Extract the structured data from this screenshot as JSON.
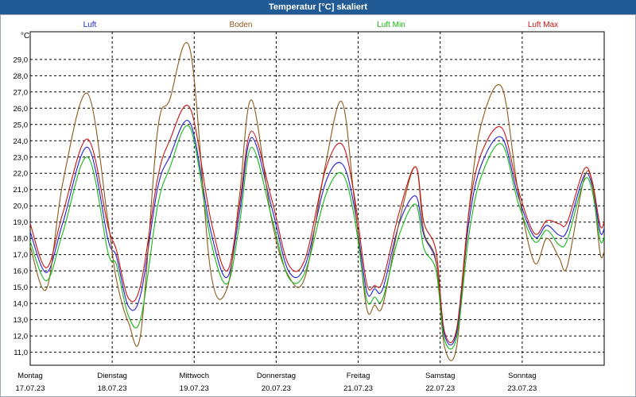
{
  "window": {
    "title": "Temperatur [°C] skaliert"
  },
  "chart_data": {
    "type": "line",
    "unit_label": "°C",
    "ylim": [
      10.2,
      30.7
    ],
    "y_ticks": [
      "11,0",
      "12,0",
      "13,0",
      "14,0",
      "15,0",
      "16,0",
      "17,0",
      "18,0",
      "19,0",
      "20,0",
      "21,0",
      "22,0",
      "23,0",
      "24,0",
      "25,0",
      "26,0",
      "27,0",
      "28,0",
      "29,0"
    ],
    "x_categories": [
      {
        "day": "Montag",
        "date": "17.07.23"
      },
      {
        "day": "Dienstag",
        "date": "18.07.23"
      },
      {
        "day": "Mittwoch",
        "date": "19.07.23"
      },
      {
        "day": "Donnerstag",
        "date": "20.07.23"
      },
      {
        "day": "Freitag",
        "date": "21.07.23"
      },
      {
        "day": "Samstag",
        "date": "22.07.23"
      },
      {
        "day": "Sonntag",
        "date": "23.07.23"
      }
    ],
    "x_time_range": [
      0,
      7
    ],
    "grid": true,
    "legend_position": "top",
    "series": [
      {
        "name": "Luft",
        "color": "#1f1fd6",
        "x": [
          0,
          0.2,
          0.4,
          0.7,
          0.95,
          1.05,
          1.2,
          1.35,
          1.55,
          1.7,
          1.95,
          2.2,
          2.4,
          2.55,
          2.7,
          2.95,
          3.15,
          3.35,
          3.6,
          3.8,
          3.95,
          4.1,
          4.2,
          4.3,
          4.5,
          4.7,
          4.8,
          4.95,
          5.05,
          5.2,
          5.35,
          5.5,
          5.75,
          5.95,
          6.15,
          6.3,
          6.45,
          6.55,
          6.75,
          6.85,
          6.95,
          7.0
        ],
        "y": [
          18.4,
          15.9,
          19.0,
          23.6,
          17.9,
          16.9,
          13.8,
          14.6,
          21.0,
          23.0,
          25.1,
          18.5,
          15.6,
          19.5,
          24.2,
          19.8,
          16.0,
          16.3,
          21.4,
          22.6,
          20.0,
          14.8,
          14.9,
          14.9,
          18.9,
          20.6,
          18.2,
          16.5,
          12.1,
          12.2,
          19.0,
          22.5,
          24.2,
          20.6,
          18.1,
          18.8,
          18.2,
          18.5,
          21.8,
          21.3,
          18.4,
          18.6
        ]
      },
      {
        "name": "Boden",
        "color": "#8b5a1a",
        "x": [
          0,
          0.2,
          0.4,
          0.7,
          0.95,
          1.05,
          1.2,
          1.35,
          1.55,
          1.7,
          1.95,
          2.2,
          2.4,
          2.55,
          2.7,
          2.95,
          3.15,
          3.35,
          3.6,
          3.8,
          3.95,
          4.1,
          4.2,
          4.3,
          4.5,
          4.7,
          4.8,
          4.95,
          5.05,
          5.2,
          5.35,
          5.5,
          5.75,
          5.95,
          6.15,
          6.3,
          6.45,
          6.55,
          6.75,
          6.85,
          6.95,
          7.0
        ],
        "y": [
          17.5,
          14.9,
          21.5,
          26.9,
          19.0,
          15.5,
          12.8,
          12.2,
          24.5,
          26.5,
          29.6,
          16.0,
          14.9,
          20.5,
          26.5,
          19.0,
          15.7,
          15.6,
          22.5,
          26.4,
          20.5,
          13.8,
          13.9,
          13.9,
          19.0,
          22.4,
          18.4,
          16.6,
          11.4,
          11.3,
          19.7,
          25.0,
          27.3,
          20.9,
          16.5,
          18.0,
          16.8,
          16.3,
          21.6,
          21.5,
          17.1,
          17.2
        ]
      },
      {
        "name": "Luft Min",
        "color": "#14b814",
        "x": [
          0,
          0.2,
          0.4,
          0.7,
          0.95,
          1.05,
          1.2,
          1.35,
          1.55,
          1.7,
          1.95,
          2.2,
          2.4,
          2.55,
          2.7,
          2.95,
          3.15,
          3.35,
          3.6,
          3.8,
          3.95,
          4.1,
          4.2,
          4.3,
          4.5,
          4.7,
          4.8,
          4.95,
          5.05,
          5.2,
          5.35,
          5.5,
          5.75,
          5.95,
          6.15,
          6.3,
          6.45,
          6.55,
          6.75,
          6.85,
          6.95,
          7.0
        ],
        "y": [
          17.8,
          15.4,
          18.4,
          23.0,
          17.1,
          16.4,
          13.2,
          13.1,
          19.9,
          22.3,
          24.8,
          17.9,
          15.2,
          18.8,
          23.6,
          19.2,
          15.6,
          15.9,
          20.6,
          22.0,
          19.4,
          14.3,
          14.4,
          14.3,
          18.2,
          20.1,
          17.4,
          16.0,
          11.8,
          11.9,
          18.2,
          21.8,
          23.8,
          20.2,
          17.8,
          18.5,
          17.6,
          17.9,
          21.5,
          21.0,
          17.9,
          18.1
        ]
      },
      {
        "name": "Luft Max",
        "color": "#c81414",
        "x": [
          0,
          0.2,
          0.4,
          0.7,
          0.95,
          1.05,
          1.2,
          1.35,
          1.55,
          1.7,
          1.95,
          2.2,
          2.4,
          2.55,
          2.7,
          2.95,
          3.15,
          3.35,
          3.6,
          3.8,
          3.95,
          4.1,
          4.2,
          4.3,
          4.5,
          4.7,
          4.8,
          4.95,
          5.05,
          5.2,
          5.35,
          5.5,
          5.75,
          5.95,
          6.15,
          6.3,
          6.45,
          6.55,
          6.75,
          6.85,
          6.95,
          7.0
        ],
        "y": [
          18.9,
          16.2,
          19.6,
          24.1,
          18.7,
          17.3,
          14.3,
          15.2,
          21.6,
          24.0,
          26.0,
          19.2,
          16.0,
          20.0,
          24.6,
          20.3,
          16.4,
          16.7,
          22.2,
          23.8,
          20.7,
          15.3,
          15.1,
          15.4,
          19.6,
          22.4,
          19.0,
          17.2,
          12.3,
          12.4,
          19.6,
          23.2,
          24.8,
          21.0,
          18.3,
          19.1,
          18.9,
          19.0,
          22.2,
          21.6,
          18.8,
          19.0
        ]
      }
    ]
  }
}
